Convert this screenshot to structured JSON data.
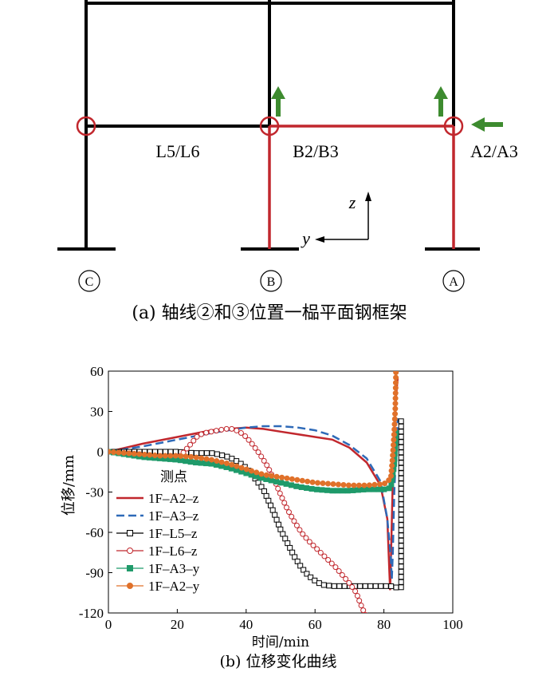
{
  "frame": {
    "labels": {
      "left_beam": "L5/L6",
      "mid_beam": "B2/B3",
      "right_beam": "A2/A3",
      "axis_c": "C",
      "axis_b": "B",
      "axis_a": "A",
      "z_axis": "z",
      "y_axis": "y"
    },
    "caption": "(a) 轴线②和③位置一榀平面钢框架",
    "colors": {
      "frame": "#000000",
      "heated": "#c1272d",
      "arrow": "#3d8b2f"
    }
  },
  "chart_data": {
    "type": "line",
    "caption": "(b) 位移变化曲线",
    "xlabel": "时间/min",
    "ylabel": "位移/mm",
    "xlim": [
      0,
      100
    ],
    "ylim": [
      -120,
      60
    ],
    "xticks": [
      0,
      20,
      40,
      60,
      80,
      100
    ],
    "yticks": [
      60,
      30,
      0,
      -30,
      -60,
      -90,
      -120
    ],
    "legend_title": "测点",
    "legend_position": "left-middle",
    "grid": false,
    "series": [
      {
        "name": "1F–A2–z",
        "color": "#c1272d",
        "style": "solid",
        "marker": "none",
        "points": [
          [
            0,
            0
          ],
          [
            10,
            6
          ],
          [
            20,
            11
          ],
          [
            30,
            16
          ],
          [
            35,
            17
          ],
          [
            40,
            18
          ],
          [
            45,
            17
          ],
          [
            50,
            15
          ],
          [
            55,
            13
          ],
          [
            60,
            11
          ],
          [
            65,
            9
          ],
          [
            70,
            3
          ],
          [
            75,
            -8
          ],
          [
            79,
            -25
          ],
          [
            81,
            -50
          ],
          [
            81.6,
            -90
          ],
          [
            81.8,
            -103
          ],
          [
            82,
            -85
          ],
          [
            82.5,
            -30
          ],
          [
            83,
            10
          ],
          [
            83.5,
            40
          ],
          [
            84,
            55
          ]
        ]
      },
      {
        "name": "1F–A3–z",
        "color": "#2e6ab8",
        "style": "dashed",
        "marker": "none",
        "points": [
          [
            0,
            0
          ],
          [
            10,
            4
          ],
          [
            20,
            9
          ],
          [
            30,
            14
          ],
          [
            40,
            18
          ],
          [
            45,
            19
          ],
          [
            50,
            19
          ],
          [
            55,
            18
          ],
          [
            60,
            16
          ],
          [
            65,
            12
          ],
          [
            70,
            5
          ],
          [
            75,
            -5
          ],
          [
            79,
            -22
          ],
          [
            81,
            -50
          ],
          [
            82,
            -78
          ],
          [
            82.3,
            -95
          ],
          [
            82.6,
            -75
          ],
          [
            83,
            -30
          ],
          [
            84,
            25
          ]
        ]
      },
      {
        "name": "1F–L5–z",
        "color": "#000000",
        "style": "solid",
        "marker": "open-square",
        "points": [
          [
            0,
            0
          ],
          [
            10,
            0
          ],
          [
            20,
            0
          ],
          [
            25,
            -1
          ],
          [
            30,
            -1
          ],
          [
            32,
            -2
          ],
          [
            35,
            -4
          ],
          [
            38,
            -8
          ],
          [
            40,
            -12
          ],
          [
            42,
            -18
          ],
          [
            45,
            -28
          ],
          [
            48,
            -45
          ],
          [
            50,
            -58
          ],
          [
            52,
            -68
          ],
          [
            54,
            -78
          ],
          [
            56,
            -86
          ],
          [
            58,
            -92
          ],
          [
            60,
            -96
          ],
          [
            62,
            -99
          ],
          [
            65,
            -100
          ],
          [
            70,
            -100
          ],
          [
            75,
            -100
          ],
          [
            80,
            -100
          ],
          [
            82,
            -100
          ],
          [
            83,
            -101
          ],
          [
            85,
            -101
          ],
          [
            85,
            23
          ],
          [
            84,
            23
          ]
        ]
      },
      {
        "name": "1F–L6–z",
        "color": "#c1272d",
        "style": "solid",
        "marker": "open-circle",
        "points": [
          [
            0,
            0
          ],
          [
            10,
            -2
          ],
          [
            15,
            -4
          ],
          [
            20,
            -5
          ],
          [
            22,
            0
          ],
          [
            24,
            6
          ],
          [
            26,
            12
          ],
          [
            28,
            14
          ],
          [
            30,
            15
          ],
          [
            32,
            16
          ],
          [
            34,
            17
          ],
          [
            36,
            17
          ],
          [
            38,
            15
          ],
          [
            40,
            11
          ],
          [
            42,
            5
          ],
          [
            44,
            -2
          ],
          [
            46,
            -10
          ],
          [
            48,
            -20
          ],
          [
            50,
            -32
          ],
          [
            52,
            -43
          ],
          [
            54,
            -52
          ],
          [
            56,
            -60
          ],
          [
            58,
            -66
          ],
          [
            60,
            -71
          ],
          [
            62,
            -76
          ],
          [
            64,
            -81
          ],
          [
            66,
            -86
          ],
          [
            68,
            -92
          ],
          [
            70,
            -98
          ],
          [
            72,
            -105
          ],
          [
            73,
            -112
          ],
          [
            74,
            -118
          ],
          [
            75,
            -123
          ]
        ]
      },
      {
        "name": "1F–A3–y",
        "color": "#1f9a6a",
        "style": "solid",
        "marker": "filled-square",
        "points": [
          [
            0,
            0
          ],
          [
            5,
            -2
          ],
          [
            10,
            -4
          ],
          [
            15,
            -5
          ],
          [
            20,
            -6
          ],
          [
            25,
            -8
          ],
          [
            30,
            -9
          ],
          [
            35,
            -12
          ],
          [
            40,
            -16
          ],
          [
            45,
            -20
          ],
          [
            50,
            -23
          ],
          [
            55,
            -26
          ],
          [
            60,
            -28
          ],
          [
            65,
            -29
          ],
          [
            70,
            -29
          ],
          [
            75,
            -28
          ],
          [
            80,
            -28
          ],
          [
            82,
            -27
          ],
          [
            83,
            -10
          ],
          [
            83.5,
            15
          ]
        ]
      },
      {
        "name": "1F–A2–y",
        "color": "#e0712a",
        "style": "solid",
        "marker": "filled-circle",
        "points": [
          [
            0,
            0
          ],
          [
            5,
            -1
          ],
          [
            10,
            -2
          ],
          [
            15,
            -3
          ],
          [
            20,
            -3
          ],
          [
            25,
            -4
          ],
          [
            30,
            -6
          ],
          [
            35,
            -9
          ],
          [
            40,
            -13
          ],
          [
            45,
            -17
          ],
          [
            50,
            -19
          ],
          [
            55,
            -21
          ],
          [
            60,
            -23
          ],
          [
            65,
            -24
          ],
          [
            70,
            -25
          ],
          [
            75,
            -25
          ],
          [
            80,
            -24
          ],
          [
            82,
            -20
          ],
          [
            82.5,
            -5
          ],
          [
            83,
            15
          ],
          [
            83.3,
            32
          ],
          [
            83.5,
            60
          ]
        ]
      }
    ]
  }
}
